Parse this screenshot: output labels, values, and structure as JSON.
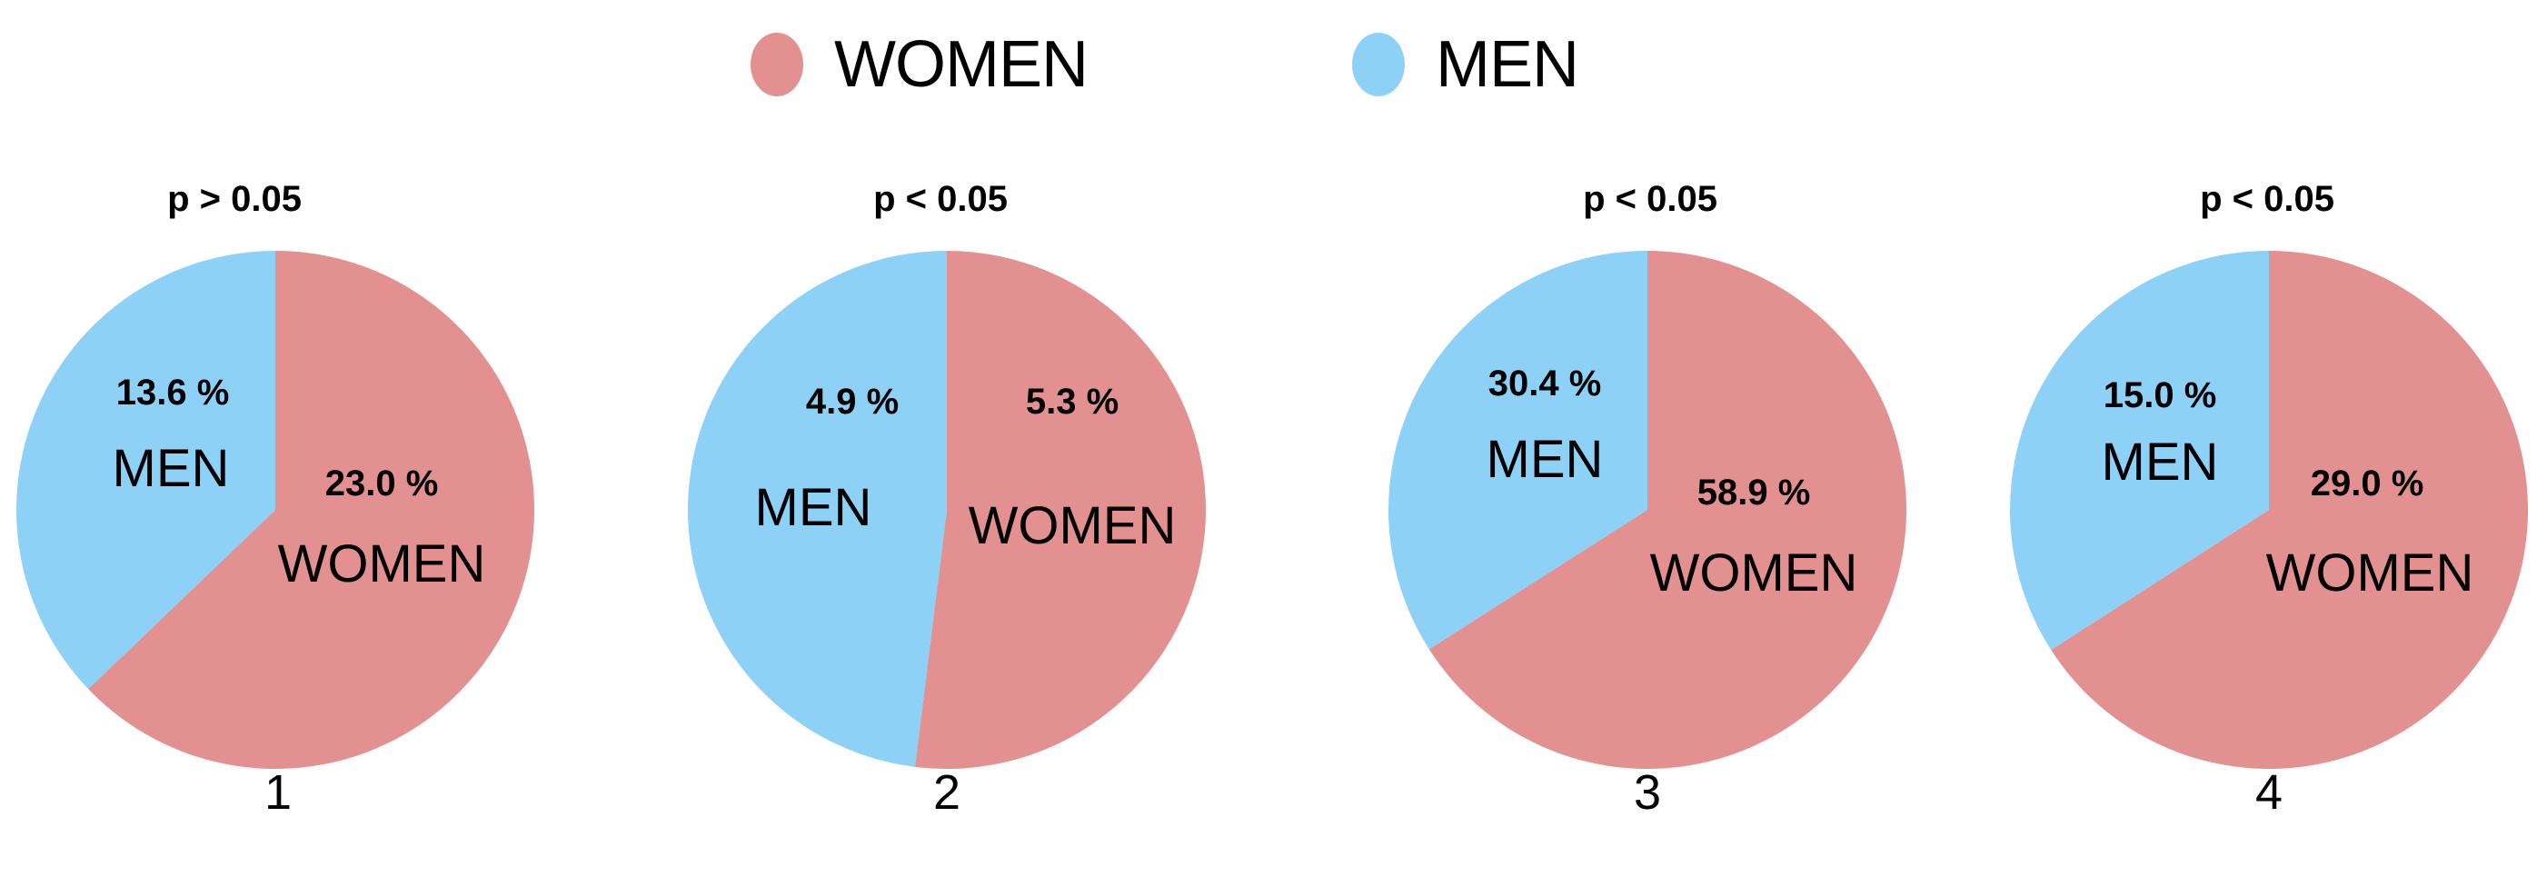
{
  "legend": {
    "items": [
      {
        "label": "WOMEN",
        "color": "#e29090"
      },
      {
        "label": "MEN",
        "color": "#8dd1f7"
      }
    ]
  },
  "colors": {
    "women": "#e29090",
    "men": "#8dd1f7",
    "text": "#000000"
  },
  "pies": [
    {
      "number": "1",
      "p_label": "p > 0.05",
      "men_pct": "13.6 %",
      "women_pct": "23.0 %",
      "men_label": "MEN",
      "women_label": "WOMEN"
    },
    {
      "number": "2",
      "p_label": "p < 0.05",
      "men_pct": "4.9 %",
      "women_pct": "5.3 %",
      "men_label": "MEN",
      "women_label": "WOMEN"
    },
    {
      "number": "3",
      "p_label": "p < 0.05",
      "men_pct": "30.4 %",
      "women_pct": "58.9 %",
      "men_label": "MEN",
      "women_label": "WOMEN"
    },
    {
      "number": "4",
      "p_label": "p < 0.05",
      "men_pct": "15.0 %",
      "women_pct": "29.0 %",
      "men_label": "MEN",
      "women_label": "WOMEN"
    }
  ],
  "chart_data": {
    "type": "pie",
    "title": "",
    "legend": [
      "WOMEN",
      "MEN"
    ],
    "legend_position": "top",
    "charts": [
      {
        "label": "1",
        "annotation": "p > 0.05",
        "categories": [
          "MEN",
          "WOMEN"
        ],
        "values": [
          13.6,
          23.0
        ],
        "unit": "%"
      },
      {
        "label": "2",
        "annotation": "p < 0.05",
        "categories": [
          "MEN",
          "WOMEN"
        ],
        "values": [
          4.9,
          5.3
        ],
        "unit": "%"
      },
      {
        "label": "3",
        "annotation": "p < 0.05",
        "categories": [
          "MEN",
          "WOMEN"
        ],
        "values": [
          30.4,
          58.9
        ],
        "unit": "%"
      },
      {
        "label": "4",
        "annotation": "p < 0.05",
        "categories": [
          "MEN",
          "WOMEN"
        ],
        "values": [
          15.0,
          29.0
        ],
        "unit": "%"
      }
    ]
  }
}
